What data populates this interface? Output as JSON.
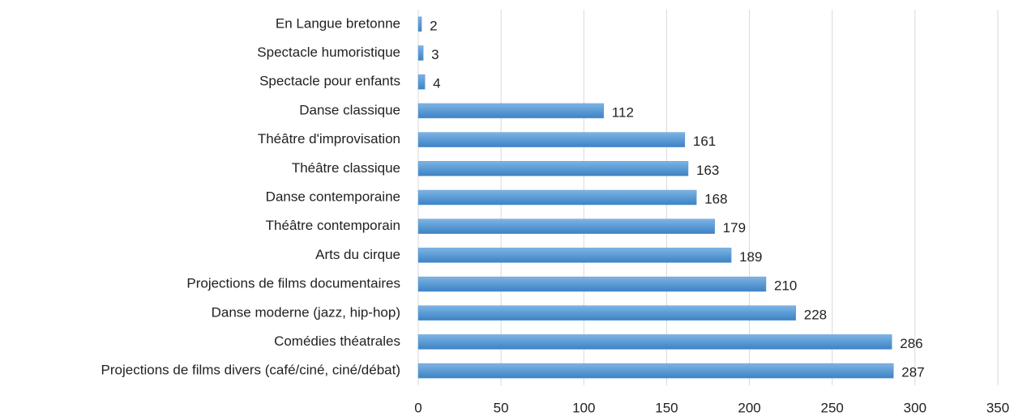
{
  "chart_data": {
    "type": "bar",
    "orientation": "horizontal",
    "categories": [
      "En Langue bretonne",
      "Spectacle humoristique",
      "Spectacle pour enfants",
      "Danse classique",
      "Théâtre d'improvisation",
      "Théâtre classique",
      "Danse contemporaine",
      "Théâtre contemporain",
      "Arts du cirque",
      "Projections de films documentaires",
      "Danse moderne (jazz, hip-hop)",
      "Comédies théatrales",
      "Projections de films divers (café/ciné, ciné/débat)"
    ],
    "values": [
      2,
      3,
      4,
      112,
      161,
      163,
      168,
      179,
      189,
      210,
      228,
      286,
      287
    ],
    "color": "#5b9bd5",
    "xlim": [
      0,
      350
    ],
    "xticks": [
      0,
      50,
      100,
      150,
      200,
      250,
      300,
      350
    ],
    "grid": true
  }
}
